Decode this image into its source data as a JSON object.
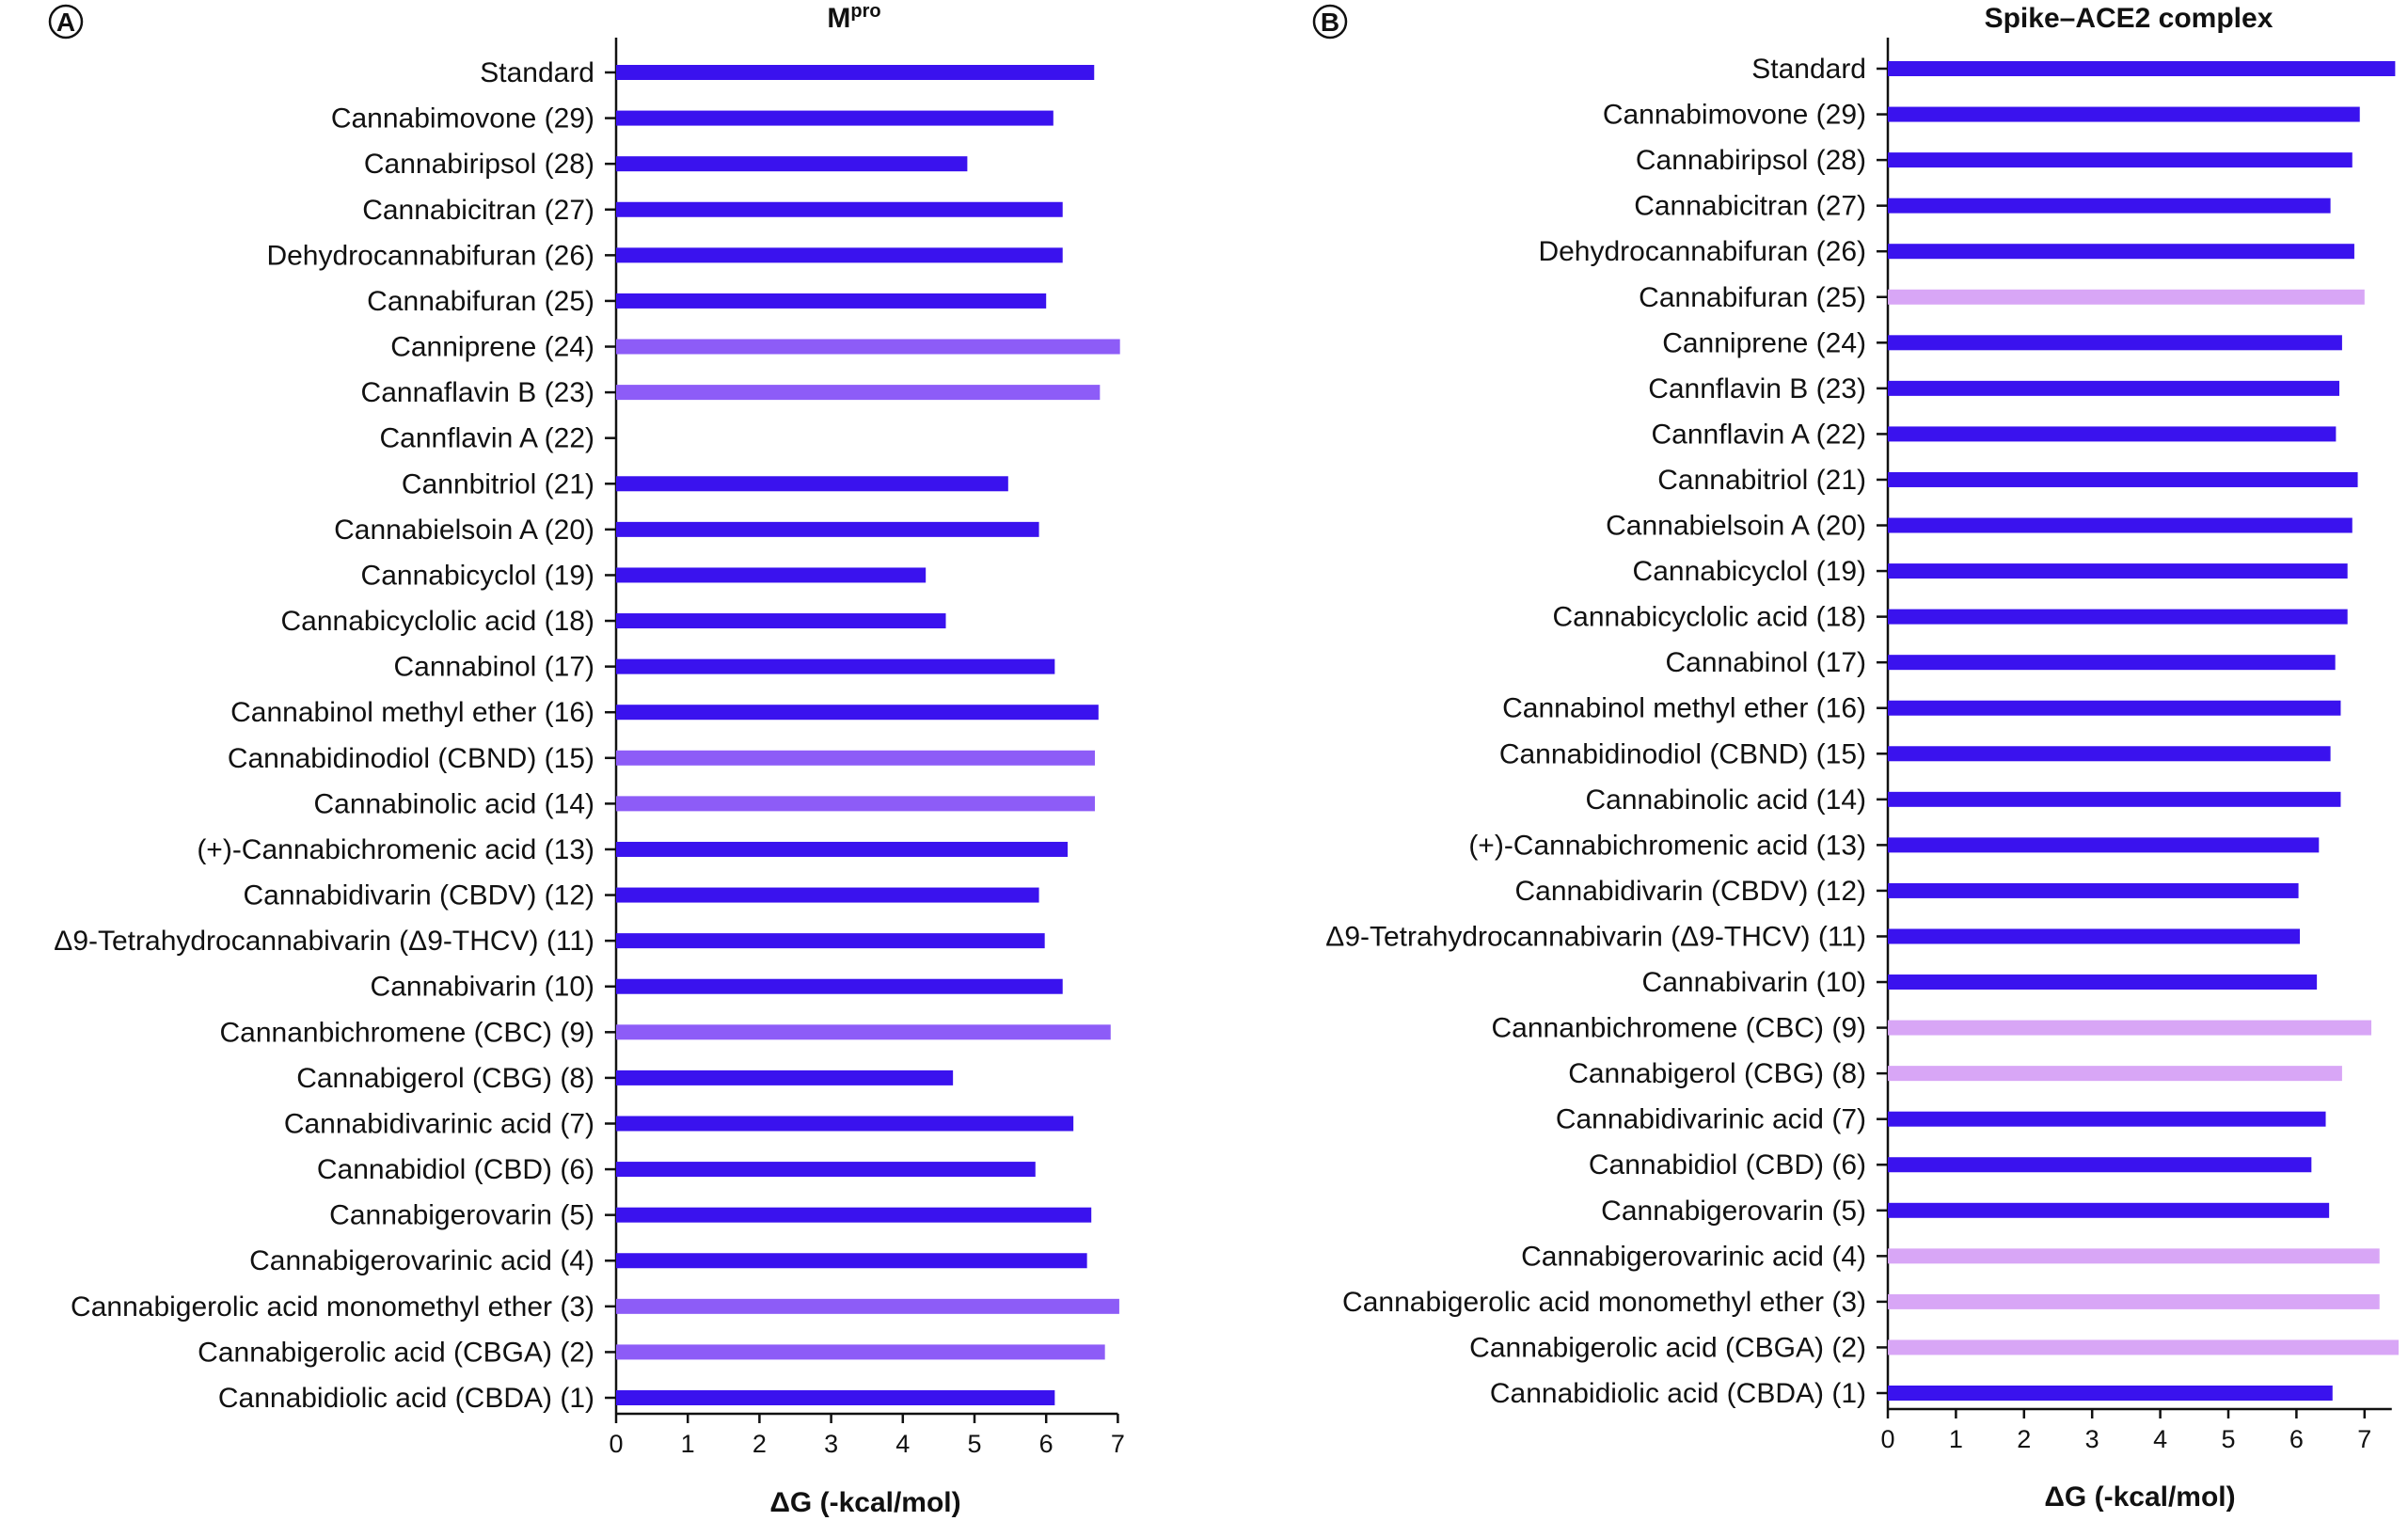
{
  "chart_data": [
    {
      "type": "bar",
      "orientation": "horizontal",
      "panel": "A",
      "title": "M",
      "title_superscript": "pro",
      "xlabel": "ΔG (-kcal/mol)",
      "ylabel": "",
      "xlim": [
        0,
        7
      ],
      "xticks": [
        "0",
        "1",
        "2",
        "3",
        "4",
        "5",
        "6",
        "7"
      ],
      "colors": {
        "primary": "#3a12ee",
        "highlight": "#8d5cf7"
      },
      "categories": [
        "Standard",
        "Cannabimovone (29)",
        "Cannabiripsol (28)",
        "Cannabicitran (27)",
        "Dehydrocannabifuran (26)",
        "Cannabifuran (25)",
        "Canniprene (24)",
        "Cannaflavin B (23)",
        "Cannflavin A (22)",
        "Cannbitriol (21)",
        "Cannabielsoin A (20)",
        "Cannabicyclol (19)",
        "Cannabicyclolic acid (18)",
        "Cannabinol (17)",
        "Cannabinol methyl ether (16)",
        "Cannabidinodiol (CBND) (15)",
        "Cannabinolic acid (14)",
        "(+)-Cannabichromenic acid (13)",
        "Cannabidivarin (CBDV) (12)",
        "Δ9-Tetrahydrocannabivarin (Δ9-THCV) (11)",
        "Cannabivarin (10)",
        "Cannanbichromene (CBC) (9)",
        "Cannabigerol (CBG) (8)",
        "Cannabidivarinic acid (7)",
        "Cannabidiol (CBD) (6)",
        "Cannabigerovarin (5)",
        "Cannabigerovarinic acid (4)",
        "Cannabigerolic acid monomethyl ether (3)",
        "Cannabigerolic acid (CBGA) (2)",
        "Cannabidiolic acid (CBDA) (1)"
      ],
      "values": [
        6.67,
        6.1,
        4.9,
        6.23,
        6.23,
        6.0,
        7.03,
        6.75,
        null,
        5.47,
        5.9,
        4.32,
        4.6,
        6.12,
        6.73,
        6.68,
        6.68,
        6.3,
        5.9,
        5.98,
        6.23,
        6.9,
        4.7,
        6.38,
        5.85,
        6.63,
        6.57,
        7.02,
        6.82,
        6.12
      ],
      "highlighted": [
        false,
        false,
        false,
        false,
        false,
        false,
        true,
        true,
        false,
        false,
        false,
        false,
        false,
        false,
        false,
        true,
        true,
        false,
        false,
        false,
        false,
        true,
        false,
        false,
        false,
        false,
        false,
        true,
        true,
        false
      ]
    },
    {
      "type": "bar",
      "orientation": "horizontal",
      "panel": "B",
      "title": "Spike–ACE2 complex",
      "xlabel": "ΔG (-kcal/mol)",
      "ylabel": "",
      "xlim": [
        0,
        7.4
      ],
      "xticks": [
        "0",
        "1",
        "2",
        "3",
        "4",
        "5",
        "6",
        "7"
      ],
      "colors": {
        "primary": "#3a12ee",
        "highlight": "#d8a6f6"
      },
      "categories": [
        "Standard",
        "Cannabimovone (29)",
        "Cannabiripsol (28)",
        "Cannabicitran (27)",
        "Dehydrocannabifuran (26)",
        "Cannabifuran (25)",
        "Canniprene (24)",
        "Cannflavin B (23)",
        "Cannflavin A (22)",
        "Cannabitriol (21)",
        "Cannabielsoin A (20)",
        "Cannabicyclol (19)",
        "Cannabicyclolic acid (18)",
        "Cannabinol (17)",
        "Cannabinol methyl ether (16)",
        "Cannabidinodiol (CBND) (15)",
        "Cannabinolic acid (14)",
        "(+)-Cannabichromenic acid (13)",
        "Cannabidivarin (CBDV) (12)",
        "Δ9-Tetrahydrocannabivarin (Δ9-THCV) (11)",
        "Cannabivarin (10)",
        "Cannanbichromene (CBC) (9)",
        "Cannabigerol (CBG) (8)",
        "Cannabidivarinic acid (7)",
        "Cannabidiol (CBD) (6)",
        "Cannabigerovarin (5)",
        "Cannabigerovarinic acid (4)",
        "Cannabigerolic acid monomethyl ether (3)",
        "Cannabigerolic acid (CBGA) (2)",
        "Cannabidiolic acid (CBDA) (1)"
      ],
      "values": [
        7.45,
        6.93,
        6.82,
        6.5,
        6.85,
        7.0,
        6.67,
        6.63,
        6.58,
        6.9,
        6.82,
        6.75,
        6.75,
        6.57,
        6.65,
        6.5,
        6.65,
        6.33,
        6.03,
        6.05,
        6.3,
        7.1,
        6.67,
        6.43,
        6.22,
        6.48,
        7.22,
        7.22,
        7.5,
        6.53
      ],
      "highlighted": [
        false,
        false,
        false,
        false,
        false,
        true,
        false,
        false,
        false,
        false,
        false,
        false,
        false,
        false,
        false,
        false,
        false,
        false,
        false,
        false,
        false,
        true,
        true,
        false,
        false,
        false,
        true,
        true,
        true,
        false
      ]
    }
  ]
}
